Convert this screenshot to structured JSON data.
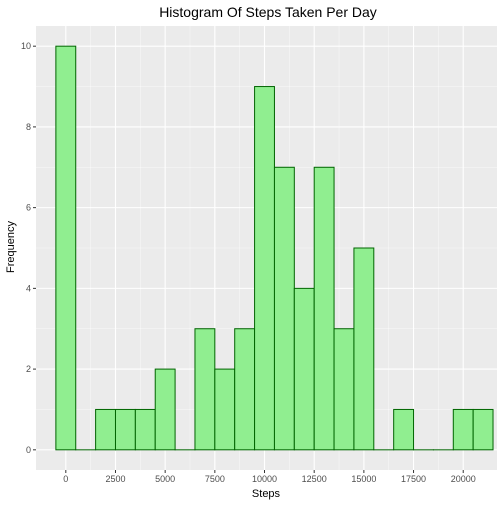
{
  "chart_data": {
    "type": "bar",
    "title": "Histogram Of Steps Taken Per Day",
    "xlabel": "Steps",
    "ylabel": "Frequency",
    "x_ticks": [
      "0",
      "2500",
      "5000",
      "7500",
      "10000",
      "12500",
      "15000",
      "17500",
      "20000"
    ],
    "x_tick_values": [
      0,
      2500,
      5000,
      7500,
      10000,
      12500,
      15000,
      17500,
      20000
    ],
    "y_ticks": [
      "0",
      "2",
      "4",
      "6",
      "8",
      "10"
    ],
    "y_tick_values": [
      0,
      2,
      4,
      6,
      8,
      10
    ],
    "xlim": [
      -1500,
      21700
    ],
    "ylim": [
      -0.5,
      10.5
    ],
    "bin_width": 1000,
    "bins": [
      {
        "center": 0,
        "count": 10
      },
      {
        "center": 1000,
        "count": 0
      },
      {
        "center": 2000,
        "count": 1
      },
      {
        "center": 3000,
        "count": 1
      },
      {
        "center": 4000,
        "count": 1
      },
      {
        "center": 5000,
        "count": 2
      },
      {
        "center": 6000,
        "count": 0
      },
      {
        "center": 7000,
        "count": 3
      },
      {
        "center": 8000,
        "count": 2
      },
      {
        "center": 9000,
        "count": 3
      },
      {
        "center": 10000,
        "count": 9
      },
      {
        "center": 11000,
        "count": 7
      },
      {
        "center": 12000,
        "count": 4
      },
      {
        "center": 13000,
        "count": 7
      },
      {
        "center": 14000,
        "count": 3
      },
      {
        "center": 15000,
        "count": 5
      },
      {
        "center": 16000,
        "count": 0
      },
      {
        "center": 17000,
        "count": 1
      },
      {
        "center": 18000,
        "count": 0
      },
      {
        "center": 19000,
        "count": 0
      },
      {
        "center": 20000,
        "count": 1
      },
      {
        "center": 21000,
        "count": 1
      }
    ],
    "grid": true,
    "colors": {
      "panel": "#ebebeb",
      "grid_major": "#ffffff",
      "bar_fill": "#90ee90",
      "bar_outline": "#006400"
    }
  }
}
